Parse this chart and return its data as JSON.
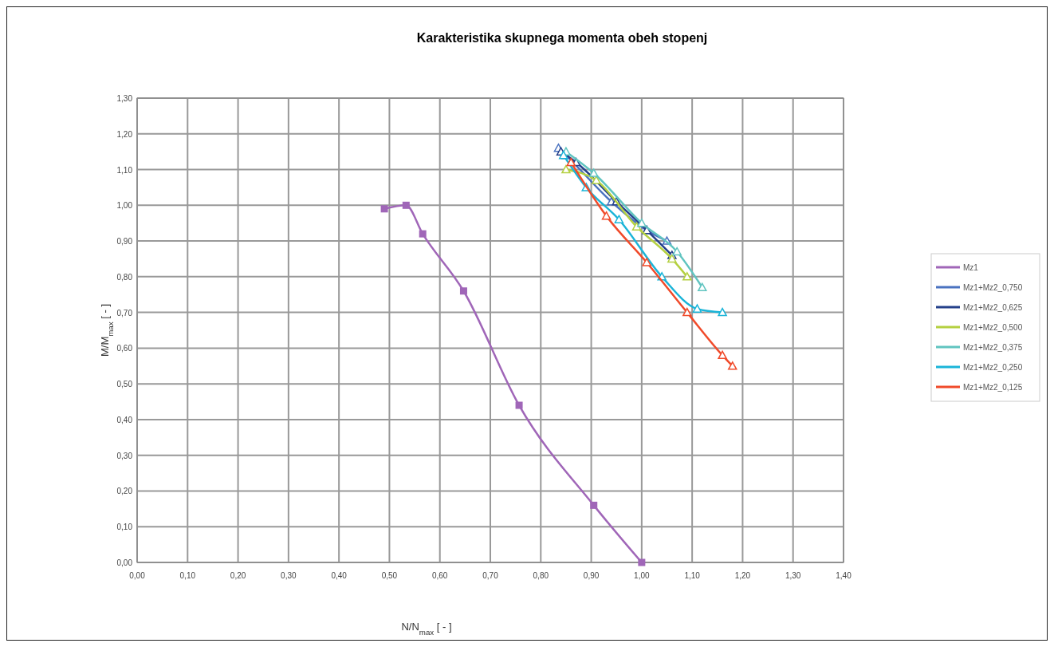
{
  "chart_data": {
    "type": "line",
    "title": "Karakteristika skupnega momenta obeh stopenj",
    "xlabel": "N/N$_{max}$ [ - ]",
    "ylabel": "M/M$_{max}$ [ - ]",
    "xlim": [
      0,
      1.4
    ],
    "ylim": [
      0,
      1.3
    ],
    "xticks": [
      {
        "value": 0,
        "label": "0,00"
      },
      {
        "value": 0.1,
        "label": "0,10"
      },
      {
        "value": 0.2,
        "label": "0,20"
      },
      {
        "value": 0.3,
        "label": "0,30"
      },
      {
        "value": 0.4,
        "label": "0,40"
      },
      {
        "value": 0.5,
        "label": "0,50"
      },
      {
        "value": 0.6,
        "label": "0,60"
      },
      {
        "value": 0.7,
        "label": "0,70"
      },
      {
        "value": 0.8,
        "label": "0,80"
      },
      {
        "value": 0.9,
        "label": "0,90"
      },
      {
        "value": 1.0,
        "label": "1,00"
      },
      {
        "value": 1.1,
        "label": "1,10"
      },
      {
        "value": 1.2,
        "label": "1,20"
      },
      {
        "value": 1.3,
        "label": "1,30"
      },
      {
        "value": 1.4,
        "label": "1,40"
      }
    ],
    "yticks": [
      {
        "value": 0,
        "label": "0,00"
      },
      {
        "value": 0.1,
        "label": "0,10"
      },
      {
        "value": 0.2,
        "label": "0,20"
      },
      {
        "value": 0.3,
        "label": "0,30"
      },
      {
        "value": 0.4,
        "label": "0,40"
      },
      {
        "value": 0.5,
        "label": "0,50"
      },
      {
        "value": 0.6,
        "label": "0,60"
      },
      {
        "value": 0.7,
        "label": "0,70"
      },
      {
        "value": 0.8,
        "label": "0,80"
      },
      {
        "value": 0.9,
        "label": "0,90"
      },
      {
        "value": 1.0,
        "label": "1,00"
      },
      {
        "value": 1.1,
        "label": "1,10"
      },
      {
        "value": 1.2,
        "label": "1,20"
      },
      {
        "value": 1.3,
        "label": "1,30"
      }
    ],
    "grid": true,
    "legend": "right",
    "series": [
      {
        "name": "Mz1",
        "color": "#a066b8",
        "marker": "square",
        "x": [
          0.49,
          0.533,
          0.566,
          0.647,
          0.757,
          0.905,
          1.0
        ],
        "values": [
          0.99,
          1.0,
          0.92,
          0.76,
          0.44,
          0.16,
          0.0
        ]
      },
      {
        "name": "Mz1+Mz2_0,750",
        "color": "#4a72c0",
        "marker": "triangle",
        "x": [
          0.835,
          0.85,
          0.94,
          1.01,
          1.05
        ],
        "values": [
          1.16,
          1.14,
          1.01,
          0.93,
          0.9
        ]
      },
      {
        "name": "Mz1+Mz2_0,625",
        "color": "#24408a",
        "marker": "triangle",
        "x": [
          0.84,
          0.87,
          0.95,
          1.01,
          1.06
        ],
        "values": [
          1.15,
          1.12,
          1.01,
          0.93,
          0.86
        ]
      },
      {
        "name": "Mz1+Mz2_0,500",
        "color": "#b4d040",
        "marker": "triangle",
        "x": [
          0.85,
          0.91,
          0.99,
          1.06,
          1.09
        ],
        "values": [
          1.1,
          1.07,
          0.94,
          0.85,
          0.8
        ]
      },
      {
        "name": "Mz1+Mz2_0,375",
        "color": "#60c4c0",
        "marker": "triangle",
        "x": [
          0.85,
          0.905,
          1.0,
          1.07,
          1.12
        ],
        "values": [
          1.15,
          1.09,
          0.95,
          0.87,
          0.77
        ]
      },
      {
        "name": "Mz1+Mz2_0,250",
        "color": "#1ab4d8",
        "marker": "triangle",
        "x": [
          0.845,
          0.89,
          0.955,
          1.04,
          1.11,
          1.16
        ],
        "values": [
          1.14,
          1.05,
          0.96,
          0.8,
          0.71,
          0.7
        ]
      },
      {
        "name": "Mz1+Mz2_0,125",
        "color": "#f04a2a",
        "marker": "triangle",
        "x": [
          0.86,
          0.93,
          1.01,
          1.09,
          1.16,
          1.18
        ],
        "values": [
          1.12,
          0.97,
          0.84,
          0.7,
          0.58,
          0.55
        ]
      }
    ]
  }
}
